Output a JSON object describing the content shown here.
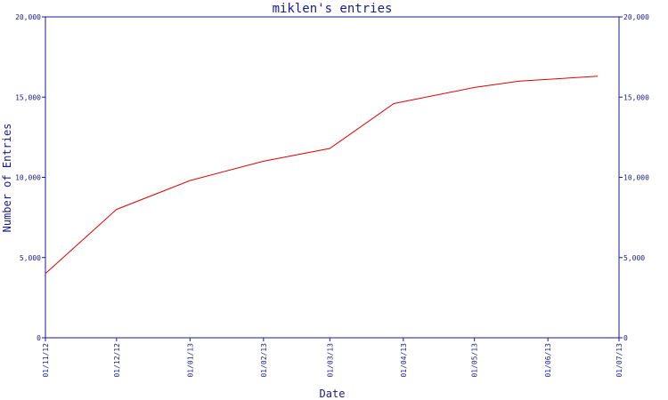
{
  "chart_data": {
    "type": "line",
    "title": "miklen's entries",
    "xlabel": "Date",
    "ylabel": "Number of Entries",
    "ylim": [
      0,
      20000
    ],
    "yticks": [
      {
        "value": 0,
        "label": "0"
      },
      {
        "value": 5000,
        "label": "5,000"
      },
      {
        "value": 10000,
        "label": "10,000"
      },
      {
        "value": 15000,
        "label": "15,000"
      },
      {
        "value": 20000,
        "label": "20,000"
      }
    ],
    "xlim": [
      "2012-11-01",
      "2013-07-01"
    ],
    "xticks": [
      {
        "date": "2012-11-01",
        "label": "01/11/12"
      },
      {
        "date": "2012-12-01",
        "label": "01/12/12"
      },
      {
        "date": "2013-01-01",
        "label": "01/01/13"
      },
      {
        "date": "2013-02-01",
        "label": "01/02/13"
      },
      {
        "date": "2013-03-01",
        "label": "01/03/13"
      },
      {
        "date": "2013-04-01",
        "label": "01/04/13"
      },
      {
        "date": "2013-05-01",
        "label": "01/05/13"
      },
      {
        "date": "2013-06-01",
        "label": "01/06/13"
      },
      {
        "date": "2013-07-01",
        "label": "01/07/13"
      }
    ],
    "series": [
      {
        "color": "#e00000",
        "points": [
          {
            "x": "2012-11-01",
            "y": 4000
          },
          {
            "x": "2012-12-01",
            "y": 8000
          },
          {
            "x": "2013-01-01",
            "y": 9800
          },
          {
            "x": "2013-02-01",
            "y": 11000
          },
          {
            "x": "2013-03-01",
            "y": 11800
          },
          {
            "x": "2013-03-28",
            "y": 14600
          },
          {
            "x": "2013-05-01",
            "y": 15600
          },
          {
            "x": "2013-05-20",
            "y": 16000
          },
          {
            "x": "2013-06-22",
            "y": 16300
          }
        ]
      }
    ],
    "grid": false,
    "right_axis_mirror": true,
    "axis_color": "#1a1a8c"
  }
}
